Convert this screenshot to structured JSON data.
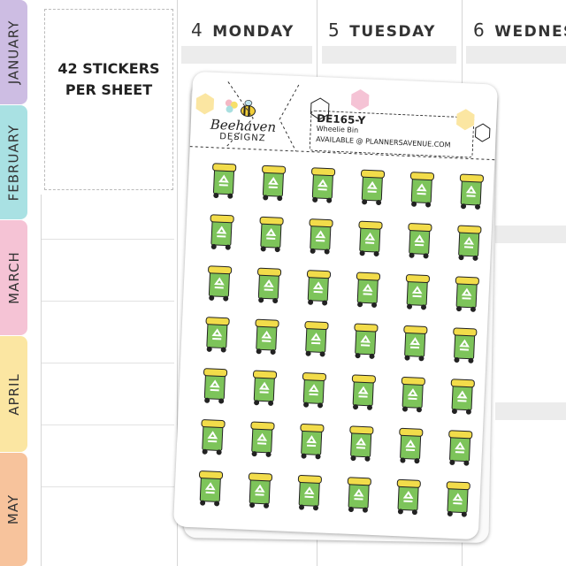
{
  "tabs": [
    {
      "label": "JANUARY",
      "color": "#cdbde3"
    },
    {
      "label": "FEBRUARY",
      "color": "#a9e1e3"
    },
    {
      "label": "MARCH",
      "color": "#f5c3d5"
    },
    {
      "label": "APRIL",
      "color": "#fbe6a2"
    },
    {
      "label": "MAY",
      "color": "#f7c39c"
    }
  ],
  "promo": {
    "line1": "42 STICKERS",
    "line2": "PER SHEET"
  },
  "days": [
    {
      "num": "4",
      "name": "MONDAY"
    },
    {
      "num": "5",
      "name": "TUESDAY"
    },
    {
      "num": "6",
      "name": "WEDNES"
    }
  ],
  "sticker_sheet": {
    "brand_line1": "Beehaven",
    "brand_line2": "DESIGNZ",
    "code": "DE165-Y",
    "name": "Wheelie Bin",
    "availability": "AVAILABLE @ PLANNERSAVENUE.COM",
    "rows": 7,
    "columns": 6,
    "bin_color": "#7dc45a",
    "lid_color": "#f2dc4a",
    "icon": "recycle-icon"
  }
}
